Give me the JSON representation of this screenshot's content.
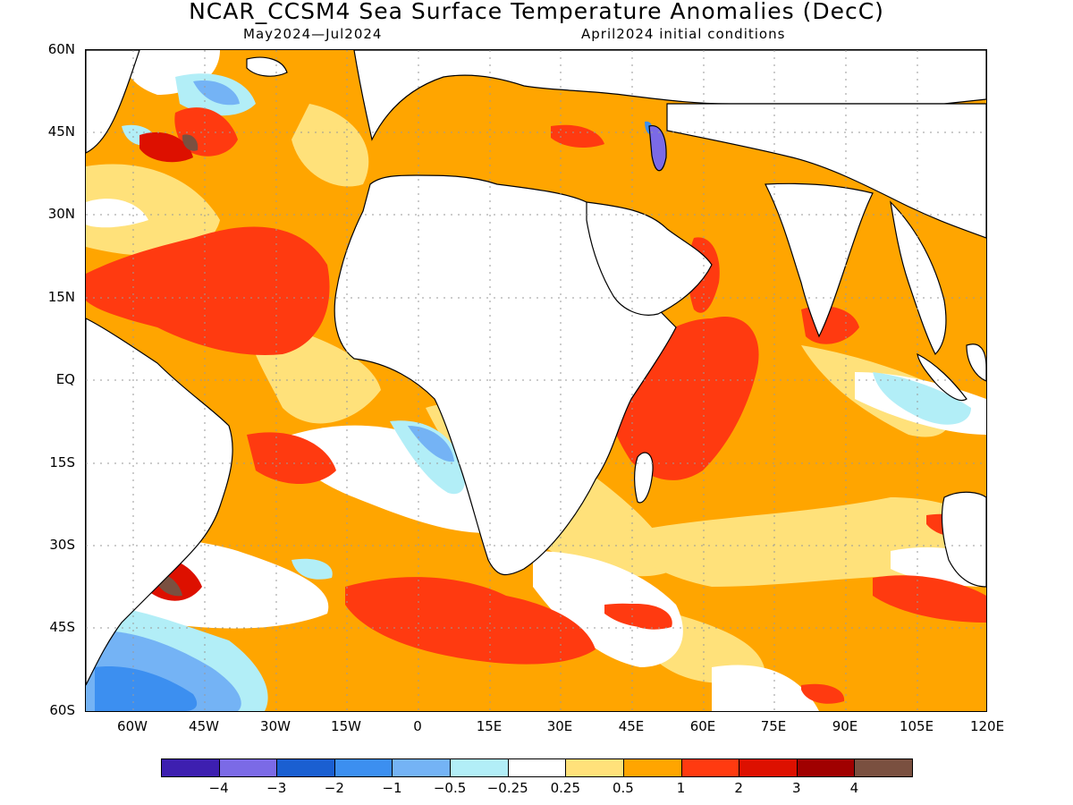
{
  "title": "NCAR_CCSM4 Sea Surface Temperature Anomalies (DecC)",
  "subtitle_left": "May2024—Jul2024",
  "subtitle_right": "April2024 initial conditions",
  "lat_labels": [
    "60N",
    "45N",
    "30N",
    "15N",
    "EQ",
    "15S",
    "30S",
    "45S",
    "60S"
  ],
  "lon_labels": [
    "60W",
    "45W",
    "30W",
    "15W",
    "0",
    "15E",
    "30E",
    "45E",
    "60E",
    "75E",
    "90E",
    "105E",
    "120E"
  ],
  "colorbar": {
    "colors": [
      "#3d1fb0",
      "#7b6ae6",
      "#1a5fd1",
      "#3c8ff0",
      "#74b3f5",
      "#b2eef7",
      "#ffffff",
      "#ffe17a",
      "#ffa500",
      "#ff3a10",
      "#dd1000",
      "#a00000",
      "#7a5040"
    ],
    "labels": [
      "−4",
      "−3",
      "−2",
      "−1",
      "−0.5",
      "−0.25",
      "0.25",
      "0.5",
      "1",
      "2",
      "3",
      "4"
    ]
  },
  "palette": {
    "ocean_base": "#ffa500",
    "land": "#ffffff",
    "light_yellow": "#ffe17a",
    "red": "#ff3a10",
    "dark_red": "#dd1000",
    "very_dark_red": "#a00000",
    "brown": "#7a5040",
    "light_cyan": "#b2eef7",
    "light_blue": "#74b3f5",
    "blue": "#3c8ff0",
    "purple": "#7b6ae6"
  }
}
